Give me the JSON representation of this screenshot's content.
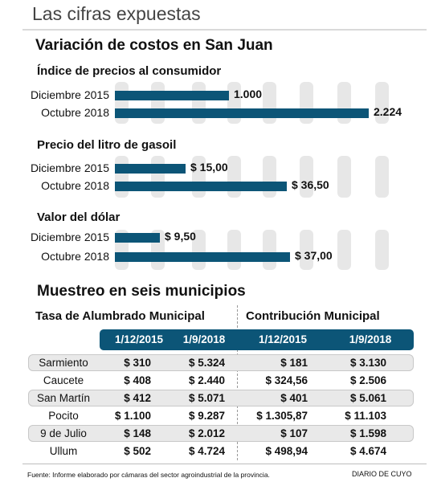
{
  "headline": "Las cifras expuestas",
  "section1_title": "Variación de costos en San Juan",
  "section2_title": "Muestreo en seis municipios",
  "chart_data": {
    "type": "bar",
    "orientation": "horizontal",
    "groups": [
      {
        "title": "Índice de precios al consumidor",
        "categories": [
          "Diciembre 2015",
          "Octubre 2018"
        ],
        "values": [
          1000,
          2224
        ],
        "value_labels": [
          "1.000",
          "2.224"
        ]
      },
      {
        "title": "Precio del litro de gasoil",
        "categories": [
          "Diciembre 2015",
          "Octubre 2018"
        ],
        "values": [
          15.0,
          36.5
        ],
        "value_labels": [
          "$ 15,00",
          "$ 36,50"
        ]
      },
      {
        "title": "Valor del dólar",
        "categories": [
          "Diciembre 2015",
          "Octubre 2018"
        ],
        "values": [
          9.5,
          37.0
        ],
        "value_labels": [
          "$ 9,50",
          "$ 37,00"
        ]
      }
    ],
    "grid": true
  },
  "table": {
    "group_headers": [
      "Tasa de Alumbrado Municipal",
      "Contribución Municipal"
    ],
    "column_headers": [
      "1/12/2015",
      "1/9/2018",
      "1/12/2015",
      "1/9/2018"
    ],
    "rows": [
      {
        "municipio": "Sarmiento",
        "cells": [
          "$ 310",
          "$ 5.324",
          "$ 181",
          "$ 3.130"
        ]
      },
      {
        "municipio": "Caucete",
        "cells": [
          "$ 408",
          "$ 2.440",
          "$ 324,56",
          "$ 2.506"
        ]
      },
      {
        "municipio": "San Martín",
        "cells": [
          "$ 412",
          "$ 5.071",
          "$ 401",
          "$ 5.061"
        ]
      },
      {
        "municipio": "Pocito",
        "cells": [
          "$ 1.100",
          "$ 9.287",
          "$ 1.305,87",
          "$ 11.103"
        ]
      },
      {
        "municipio": "9 de Julio",
        "cells": [
          "$ 148",
          "$ 2.012",
          "$ 107",
          "$ 1.598"
        ]
      },
      {
        "municipio": "Ullum",
        "cells": [
          "$ 502",
          "$ 4.724",
          "$ 498,94",
          "$ 4.674"
        ]
      }
    ]
  },
  "footer": {
    "source": "Fuente: Informe elaborado por cámaras del sector agroindustrial de la provincia.",
    "brand": "DIARIO DE CUYO"
  },
  "colors": {
    "bar": "#0c5577",
    "header_band": "#0c5577",
    "grid_column": "#e7e7e7",
    "row_stripe": "#e9e9e9"
  }
}
